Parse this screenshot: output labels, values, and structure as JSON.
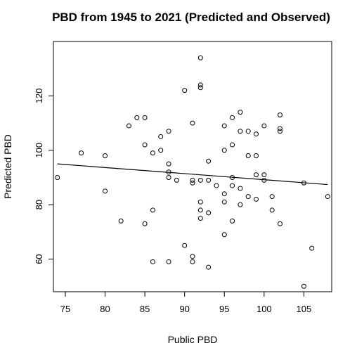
{
  "chart_data": {
    "type": "scatter",
    "title": "PBD from 1945 to 2021 (Predicted and Observed)",
    "xlabel": "Public PBD",
    "ylabel": "Predicted PBD",
    "xlim": [
      73.5,
      108.5
    ],
    "ylim": [
      48,
      140
    ],
    "xticks": [
      75,
      80,
      85,
      90,
      95,
      100,
      105
    ],
    "yticks": [
      60,
      80,
      100,
      120
    ],
    "grid": false,
    "legend": "none",
    "marker": "open-circle",
    "colors": {
      "points": "#000000",
      "line": "#000000",
      "axes": "#000000",
      "background": "#ffffff"
    },
    "trend_line": {
      "x": [
        74,
        108
      ],
      "y": [
        95.0,
        87.4
      ]
    },
    "points": [
      [
        74,
        90
      ],
      [
        77,
        99
      ],
      [
        80,
        98
      ],
      [
        80,
        85
      ],
      [
        82,
        74
      ],
      [
        83,
        109
      ],
      [
        84,
        112
      ],
      [
        85,
        112
      ],
      [
        85,
        102
      ],
      [
        85,
        73
      ],
      [
        86,
        99
      ],
      [
        86,
        78
      ],
      [
        86,
        59
      ],
      [
        87,
        105
      ],
      [
        87,
        100
      ],
      [
        88,
        107
      ],
      [
        88,
        95
      ],
      [
        88,
        92
      ],
      [
        88,
        90
      ],
      [
        88,
        59
      ],
      [
        89,
        89
      ],
      [
        90,
        122
      ],
      [
        90,
        65
      ],
      [
        91,
        110
      ],
      [
        91,
        89
      ],
      [
        91,
        88
      ],
      [
        91,
        61
      ],
      [
        91,
        59
      ],
      [
        92,
        134
      ],
      [
        92,
        124
      ],
      [
        92,
        123
      ],
      [
        92,
        89
      ],
      [
        92,
        81
      ],
      [
        92,
        78
      ],
      [
        92,
        75
      ],
      [
        93,
        96
      ],
      [
        93,
        89
      ],
      [
        93,
        77
      ],
      [
        93,
        57
      ],
      [
        94,
        87
      ],
      [
        95,
        109
      ],
      [
        95,
        100
      ],
      [
        95,
        84
      ],
      [
        95,
        81
      ],
      [
        95,
        69
      ],
      [
        96,
        112
      ],
      [
        96,
        102
      ],
      [
        96,
        90
      ],
      [
        96,
        87
      ],
      [
        96,
        74
      ],
      [
        97,
        114
      ],
      [
        97,
        107
      ],
      [
        97,
        86
      ],
      [
        97,
        80
      ],
      [
        98,
        107
      ],
      [
        98,
        98
      ],
      [
        98,
        83
      ],
      [
        99,
        106
      ],
      [
        99,
        98
      ],
      [
        99,
        91
      ],
      [
        99,
        82
      ],
      [
        100,
        109
      ],
      [
        100,
        91
      ],
      [
        100,
        89
      ],
      [
        101,
        83
      ],
      [
        101,
        78
      ],
      [
        102,
        113
      ],
      [
        102,
        108
      ],
      [
        102,
        107
      ],
      [
        102,
        73
      ],
      [
        105,
        88
      ],
      [
        105,
        50
      ],
      [
        106,
        64
      ],
      [
        108,
        83
      ]
    ]
  }
}
